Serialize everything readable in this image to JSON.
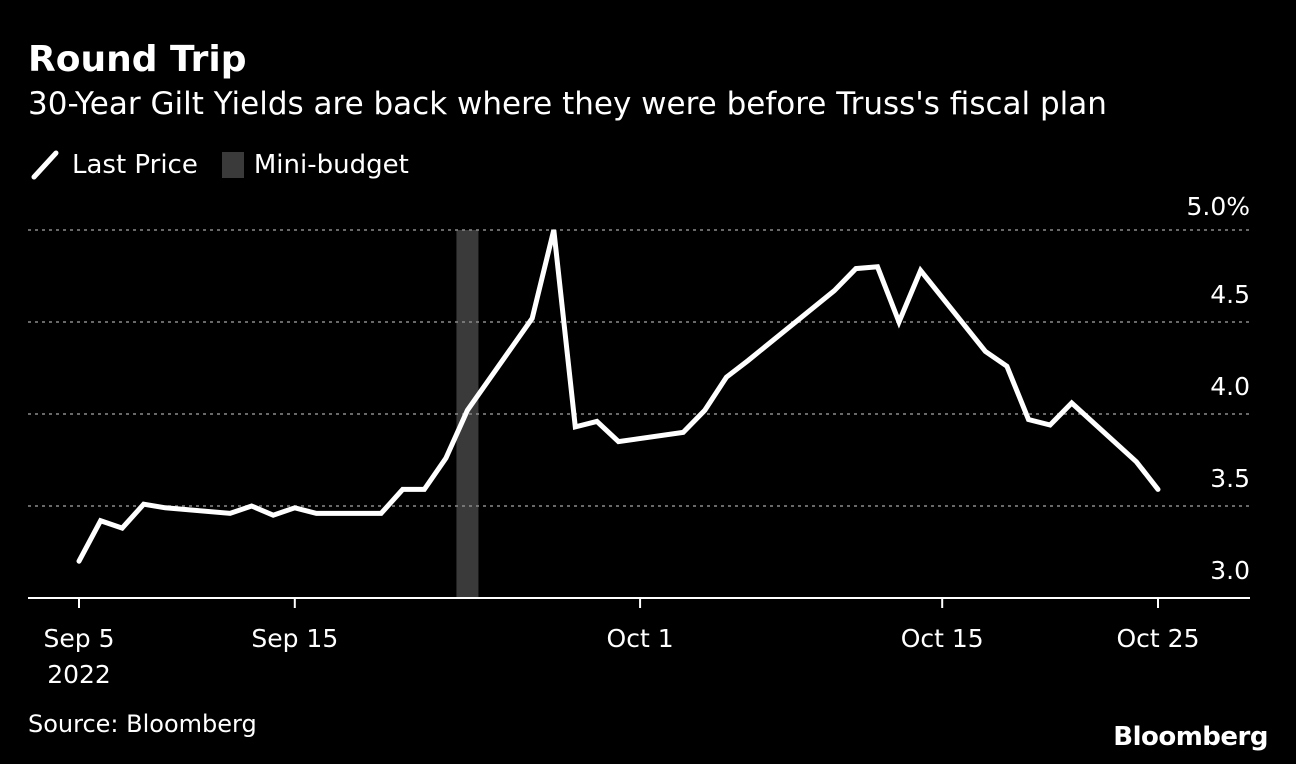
{
  "header": {
    "title": "Round Trip",
    "subtitle": "30-Year Gilt Yields are back where they were before Truss's fiscal plan"
  },
  "legend": {
    "line_label": "Last Price",
    "band_label": "Mini-budget"
  },
  "footer": {
    "source": "Source: Bloomberg",
    "logo": "Bloomberg"
  },
  "colors": {
    "background": "#000000",
    "line": "#ffffff",
    "band": "#3a3a3a",
    "grid": "#8a8a8a",
    "text": "#ffffff"
  },
  "chart_data": {
    "type": "line",
    "title": "Round Trip",
    "subtitle": "30-Year Gilt Yields are back where they were before Truss's fiscal plan",
    "xlabel": "",
    "ylabel": "",
    "ylim": [
      3.0,
      5.0
    ],
    "xlim": [
      "2022-09-05",
      "2022-10-25"
    ],
    "y_ticks": [
      {
        "value": 5.0,
        "label": "5.0%"
      },
      {
        "value": 4.5,
        "label": "4.5"
      },
      {
        "value": 4.0,
        "label": "4.0"
      },
      {
        "value": 3.5,
        "label": "3.5"
      },
      {
        "value": 3.0,
        "label": "3.0"
      }
    ],
    "x_ticks": [
      {
        "date": "2022-09-05",
        "label": "Sep 5",
        "sublabel": "2022"
      },
      {
        "date": "2022-09-15",
        "label": "Sep 15",
        "sublabel": ""
      },
      {
        "date": "2022-10-01",
        "label": "Oct 1",
        "sublabel": ""
      },
      {
        "date": "2022-10-15",
        "label": "Oct 15",
        "sublabel": ""
      },
      {
        "date": "2022-10-25",
        "label": "Oct 25",
        "sublabel": ""
      }
    ],
    "grid": true,
    "legend_position": "top-left",
    "band": {
      "name": "Mini-budget",
      "start": "2022-09-23",
      "end": "2022-09-23"
    },
    "series": [
      {
        "name": "Last Price",
        "points": [
          {
            "x": "2022-09-05",
            "y": 3.2
          },
          {
            "x": "2022-09-06",
            "y": 3.42
          },
          {
            "x": "2022-09-07",
            "y": 3.38
          },
          {
            "x": "2022-09-08",
            "y": 3.51
          },
          {
            "x": "2022-09-09",
            "y": 3.49
          },
          {
            "x": "2022-09-12",
            "y": 3.46
          },
          {
            "x": "2022-09-13",
            "y": 3.5
          },
          {
            "x": "2022-09-14",
            "y": 3.45
          },
          {
            "x": "2022-09-15",
            "y": 3.49
          },
          {
            "x": "2022-09-16",
            "y": 3.46
          },
          {
            "x": "2022-09-19",
            "y": 3.46
          },
          {
            "x": "2022-09-20",
            "y": 3.59
          },
          {
            "x": "2022-09-21",
            "y": 3.59
          },
          {
            "x": "2022-09-22",
            "y": 3.76
          },
          {
            "x": "2022-09-23",
            "y": 4.02
          },
          {
            "x": "2022-09-26",
            "y": 4.52
          },
          {
            "x": "2022-09-27",
            "y": 5.0
          },
          {
            "x": "2022-09-28",
            "y": 3.93
          },
          {
            "x": "2022-09-29",
            "y": 3.96
          },
          {
            "x": "2022-09-30",
            "y": 3.85
          },
          {
            "x": "2022-10-03",
            "y": 3.9
          },
          {
            "x": "2022-10-04",
            "y": 4.02
          },
          {
            "x": "2022-10-05",
            "y": 4.2
          },
          {
            "x": "2022-10-06",
            "y": 4.29
          },
          {
            "x": "2022-10-10",
            "y": 4.67
          },
          {
            "x": "2022-10-11",
            "y": 4.79
          },
          {
            "x": "2022-10-12",
            "y": 4.8
          },
          {
            "x": "2022-10-13",
            "y": 4.5
          },
          {
            "x": "2022-10-14",
            "y": 4.78
          },
          {
            "x": "2022-10-17",
            "y": 4.34
          },
          {
            "x": "2022-10-18",
            "y": 4.26
          },
          {
            "x": "2022-10-19",
            "y": 3.97
          },
          {
            "x": "2022-10-20",
            "y": 3.94
          },
          {
            "x": "2022-10-21",
            "y": 4.06
          },
          {
            "x": "2022-10-24",
            "y": 3.74
          },
          {
            "x": "2022-10-25",
            "y": 3.59
          }
        ]
      }
    ]
  }
}
